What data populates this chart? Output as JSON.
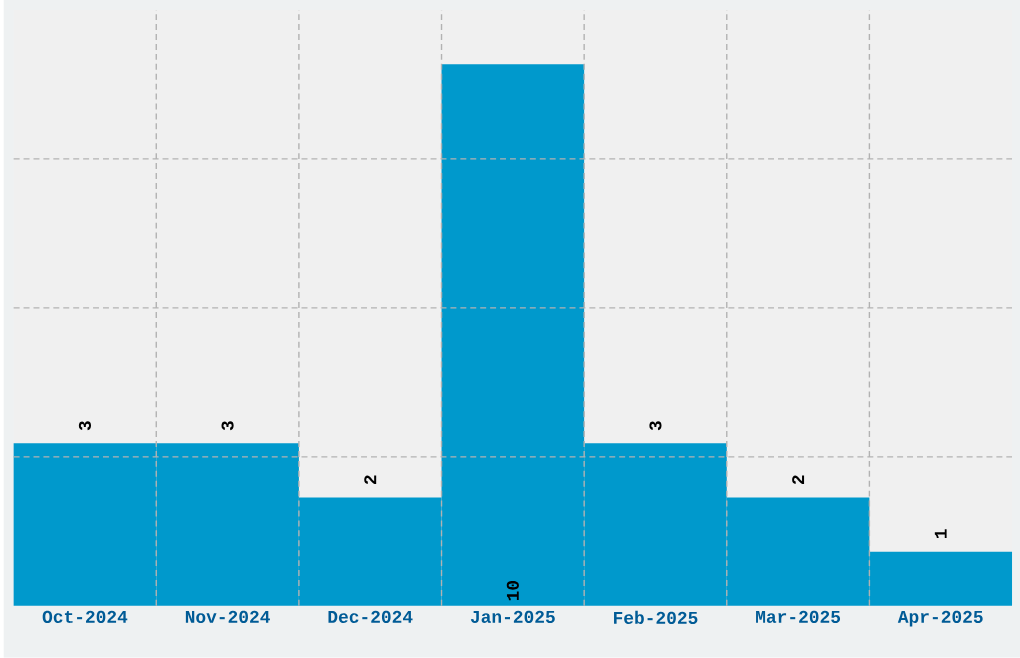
{
  "chart_data": {
    "type": "bar",
    "categories": [
      "Oct-2024",
      "Nov-2024",
      "Dec-2024",
      "Jan-2025",
      "Feb-2025",
      "Mar-2025",
      "Apr-2025"
    ],
    "values": [
      3,
      3,
      2,
      10,
      3,
      2,
      1
    ],
    "color": "#0099cc",
    "ylim": [
      0,
      11
    ],
    "yticks": [
      {
        "value": 2.75,
        "label": null
      },
      {
        "value": 5.5,
        "label": null
      },
      {
        "value": 8.25,
        "label": null
      }
    ],
    "tick_labels": "x",
    "grid": true,
    "data_labels": true
  }
}
